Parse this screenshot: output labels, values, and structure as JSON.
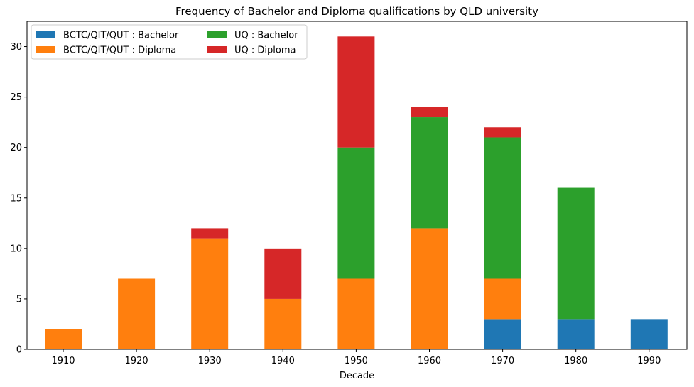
{
  "chart_data": {
    "type": "bar",
    "stacked": true,
    "title": "Frequency of Bachelor and Diploma qualifications by QLD university",
    "xlabel": "Decade",
    "ylabel": "",
    "categories": [
      "1910",
      "1920",
      "1930",
      "1940",
      "1950",
      "1960",
      "1970",
      "1980",
      "1990"
    ],
    "ylim": [
      0,
      32.5
    ],
    "yticks": [
      0,
      5,
      10,
      15,
      20,
      25,
      30
    ],
    "grid": false,
    "legend_position": "top-left",
    "legend_columns": 2,
    "series": [
      {
        "name": "BCTC/QIT/QUT : Bachelor",
        "color": "#1f77b4",
        "values": [
          0,
          0,
          0,
          0,
          0,
          0,
          3,
          3,
          3
        ]
      },
      {
        "name": "BCTC/QIT/QUT : Diploma",
        "color": "#ff7f0e",
        "values": [
          2,
          7,
          11,
          5,
          7,
          12,
          4,
          0,
          0
        ]
      },
      {
        "name": "UQ : Bachelor",
        "color": "#2ca02c",
        "values": [
          0,
          0,
          0,
          0,
          13,
          11,
          14,
          13,
          0
        ]
      },
      {
        "name": "UQ : Diploma",
        "color": "#d62728",
        "values": [
          0,
          0,
          1,
          5,
          11,
          1,
          1,
          0,
          0
        ]
      }
    ]
  }
}
